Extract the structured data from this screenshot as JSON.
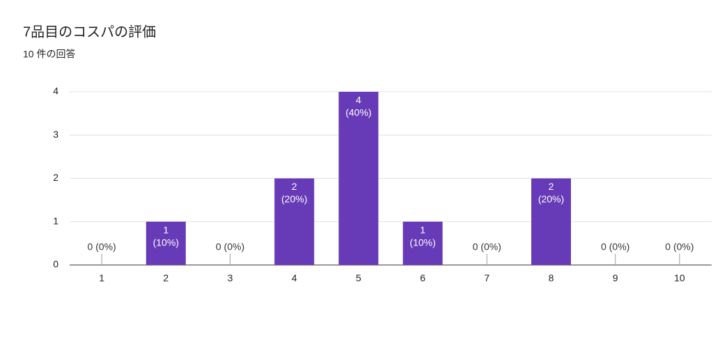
{
  "chart_data": {
    "type": "bar",
    "title": "7品目のコスパの評価",
    "subtitle": "10 件の回答",
    "categories": [
      "1",
      "2",
      "3",
      "4",
      "5",
      "6",
      "7",
      "8",
      "9",
      "10"
    ],
    "values": [
      0,
      1,
      0,
      2,
      4,
      1,
      0,
      2,
      0,
      0
    ],
    "value_labels": [
      [
        "0 (0%)"
      ],
      [
        "1",
        "(10%)"
      ],
      [
        "0 (0%)"
      ],
      [
        "2",
        "(20%)"
      ],
      [
        "4",
        "(40%)"
      ],
      [
        "1",
        "(10%)"
      ],
      [
        "0 (0%)"
      ],
      [
        "2",
        "(20%)"
      ],
      [
        "0 (0%)"
      ],
      [
        "0 (0%)"
      ]
    ],
    "color": "#673ab7",
    "ylim": [
      0,
      4
    ],
    "yticks": [
      0,
      1,
      2,
      3,
      4
    ],
    "grid": true
  }
}
